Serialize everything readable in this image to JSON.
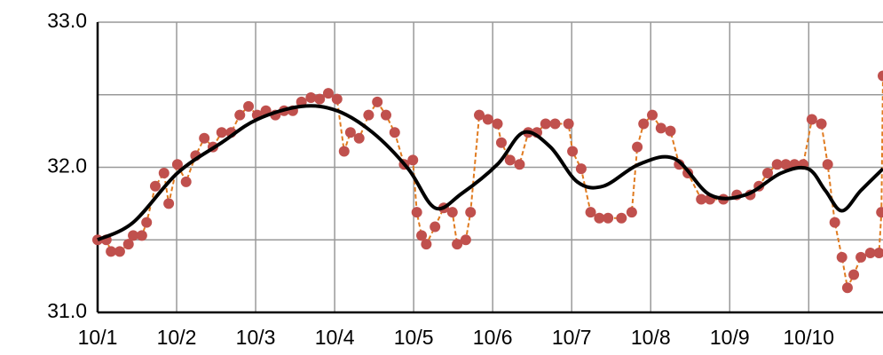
{
  "chart_data": {
    "type": "line",
    "xlim": [
      0,
      9.94
    ],
    "xticks": [
      {
        "value": 0,
        "label": "10/1"
      },
      {
        "value": 1,
        "label": "10/2"
      },
      {
        "value": 2,
        "label": "10/3"
      },
      {
        "value": 3,
        "label": "10/4"
      },
      {
        "value": 4,
        "label": "10/5"
      },
      {
        "value": 5,
        "label": "10/6"
      },
      {
        "value": 6,
        "label": "10/7"
      },
      {
        "value": 7,
        "label": "10/8"
      },
      {
        "value": 8,
        "label": "10/9"
      },
      {
        "value": 9,
        "label": "10/10"
      }
    ],
    "ylim": [
      31,
      33
    ],
    "yticks": [
      {
        "value": 31,
        "label": "31.0"
      },
      {
        "value": 32,
        "label": "32.0"
      },
      {
        "value": 33,
        "label": "33.0"
      }
    ],
    "minor_gridlines": [
      31.5,
      32.5
    ],
    "grid": true,
    "series": [
      {
        "color": "#c0504d",
        "line_color": "#e07b20",
        "style": "dots-dashed",
        "x": [
          0,
          0.11,
          0.17,
          0.28,
          0.39,
          0.45,
          0.56,
          0.62,
          0.73,
          0.84,
          0.9,
          1.01,
          1.12,
          1.24,
          1.35,
          1.46,
          1.57,
          1.69,
          1.8,
          1.91,
          2.02,
          2.13,
          2.25,
          2.36,
          2.47,
          2.58,
          2.7,
          2.81,
          2.92,
          3.03,
          3.12,
          3.2,
          3.31,
          3.43,
          3.54,
          3.65,
          3.76,
          3.88,
          3.99,
          4.04,
          4.1,
          4.16,
          4.27,
          4.38,
          4.49,
          4.55,
          4.66,
          4.72,
          4.83,
          4.94,
          5.06,
          5.11,
          5.22,
          5.34,
          5.45,
          5.56,
          5.67,
          5.79,
          5.96,
          6.01,
          6.12,
          6.24,
          6.35,
          6.46,
          6.63,
          6.76,
          6.83,
          6.91,
          7.02,
          7.13,
          7.25,
          7.36,
          7.47,
          7.64,
          7.75,
          7.92,
          8.09,
          8.26,
          8.37,
          8.48,
          8.6,
          8.71,
          8.82,
          8.93,
          9.04,
          9.16,
          9.24,
          9.33,
          9.42,
          9.49,
          9.57,
          9.66,
          9.78,
          9.89,
          9.92,
          9.94
        ],
        "values": [
          31.5,
          31.5,
          31.42,
          31.42,
          31.47,
          31.53,
          31.53,
          31.62,
          31.87,
          31.96,
          31.75,
          32.02,
          31.9,
          32.08,
          32.2,
          32.14,
          32.24,
          32.24,
          32.36,
          32.42,
          32.36,
          32.39,
          32.36,
          32.39,
          32.39,
          32.45,
          32.48,
          32.47,
          32.51,
          32.47,
          32.11,
          32.24,
          32.2,
          32.36,
          32.45,
          32.36,
          32.24,
          32.02,
          32.05,
          31.69,
          31.53,
          31.47,
          31.59,
          31.72,
          31.69,
          31.47,
          31.5,
          31.69,
          32.36,
          32.33,
          32.3,
          32.17,
          32.05,
          32.02,
          32.24,
          32.24,
          32.3,
          32.3,
          32.3,
          32.11,
          31.99,
          31.69,
          31.65,
          31.65,
          31.65,
          31.69,
          32.14,
          32.3,
          32.36,
          32.27,
          32.25,
          32.02,
          31.96,
          31.78,
          31.78,
          31.78,
          31.81,
          31.81,
          31.87,
          31.96,
          32.02,
          32.02,
          32.02,
          32.02,
          32.33,
          32.3,
          32.02,
          31.62,
          31.38,
          31.17,
          31.26,
          31.38,
          31.41,
          31.41,
          31.69,
          32.63
        ]
      },
      {
        "color": "#000000",
        "style": "smooth",
        "x": [
          0,
          0.45,
          1.01,
          1.57,
          2.02,
          2.58,
          3.03,
          3.48,
          3.93,
          4.27,
          4.61,
          5.06,
          5.39,
          5.73,
          6.07,
          6.4,
          6.85,
          7.3,
          7.75,
          8.2,
          8.65,
          8.99,
          9.21,
          9.42,
          9.66,
          9.94
        ],
        "values": [
          31.5,
          31.62,
          31.96,
          32.17,
          32.33,
          32.42,
          32.39,
          32.24,
          31.99,
          31.72,
          31.82,
          32.02,
          32.24,
          32.14,
          31.9,
          31.87,
          32.02,
          32.06,
          31.81,
          31.81,
          31.96,
          31.99,
          31.84,
          31.7,
          31.84,
          31.99
        ]
      }
    ]
  }
}
